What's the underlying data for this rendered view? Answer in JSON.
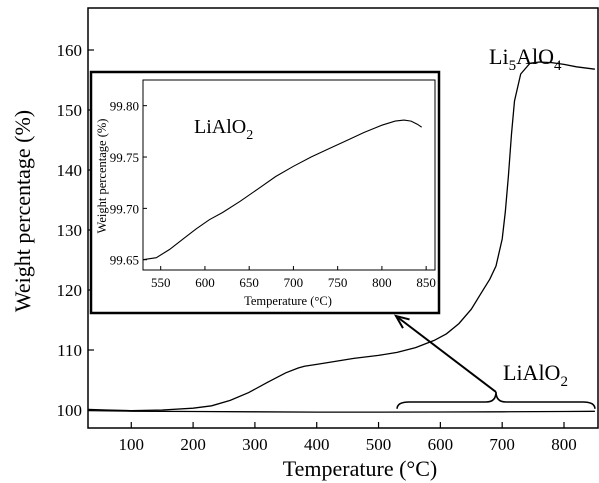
{
  "chart_data": [
    {
      "type": "line",
      "xlabel": "Temperature (°C)",
      "ylabel": "Weight percentage (%)",
      "xlim": [
        30,
        855
      ],
      "ylim": [
        97,
        167
      ],
      "xticks": [
        100,
        200,
        300,
        400,
        500,
        600,
        700,
        800
      ],
      "yticks": [
        100,
        110,
        120,
        130,
        140,
        150,
        160
      ],
      "grid": false,
      "series": [
        {
          "name": "Li5AlO4",
          "x": [
            30,
            60,
            100,
            150,
            200,
            230,
            260,
            290,
            320,
            350,
            370,
            380,
            400,
            430,
            460,
            500,
            530,
            560,
            590,
            610,
            630,
            650,
            665,
            680,
            690,
            700,
            705,
            710,
            715,
            720,
            730,
            745,
            760,
            780,
            800,
            820,
            850
          ],
          "y": [
            100.1,
            100.0,
            99.9,
            100.0,
            100.3,
            100.7,
            101.6,
            102.9,
            104.6,
            106.2,
            107.0,
            107.3,
            107.6,
            108.1,
            108.6,
            109.1,
            109.6,
            110.4,
            111.6,
            112.7,
            114.4,
            116.8,
            119.3,
            121.8,
            124.0,
            128.5,
            133.0,
            139.0,
            146.0,
            151.5,
            156.0,
            157.8,
            158.0,
            157.9,
            157.6,
            157.2,
            156.8
          ]
        },
        {
          "name": "LiAlO2",
          "x": [
            30,
            100,
            200,
            300,
            400,
            500,
            600,
            700,
            800,
            850
          ],
          "y": [
            99.9,
            99.8,
            99.75,
            99.7,
            99.65,
            99.65,
            99.67,
            99.7,
            99.75,
            99.78
          ]
        }
      ],
      "annotations": [
        {
          "label": "Li",
          "sub": "5",
          "mid": "AlO",
          "sub2": "4"
        },
        {
          "label": "LiAlO",
          "sub": "2"
        }
      ]
    },
    {
      "type": "line",
      "title": "LiAlO2",
      "title_parts": {
        "base": "LiAlO",
        "sub": "2"
      },
      "xlabel": "Temperature (°C)",
      "ylabel": "Weight percentage (%)",
      "xlim": [
        530,
        860
      ],
      "ylim": [
        99.64,
        99.825
      ],
      "xticks": [
        550,
        600,
        650,
        700,
        750,
        800,
        850
      ],
      "yticks": [
        99.65,
        99.7,
        99.75,
        99.8
      ],
      "ytick_labels": [
        "99.65",
        "99.70",
        "99.75",
        "99.80"
      ],
      "grid": false,
      "series": [
        {
          "name": "LiAlO2",
          "x": [
            530,
            545,
            560,
            575,
            590,
            605,
            620,
            640,
            660,
            680,
            700,
            720,
            740,
            760,
            780,
            800,
            815,
            825,
            833,
            840,
            845
          ],
          "y": [
            99.65,
            99.652,
            99.66,
            99.67,
            99.68,
            99.689,
            99.696,
            99.707,
            99.719,
            99.731,
            99.741,
            99.75,
            99.758,
            99.766,
            99.774,
            99.781,
            99.785,
            99.786,
            99.785,
            99.782,
            99.779
          ]
        }
      ]
    }
  ]
}
